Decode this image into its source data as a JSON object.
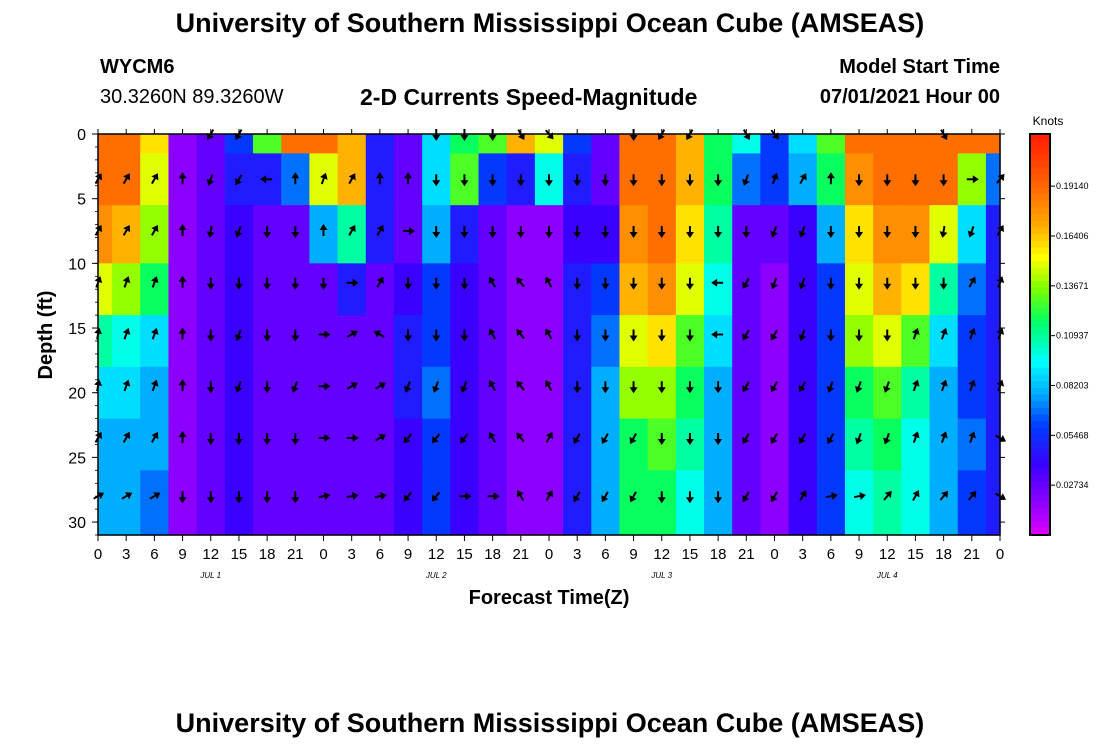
{
  "header": {
    "title": "University of Southern Mississippi Ocean Cube (AMSEAS)",
    "station": "WYCM6",
    "coordinates": "30.3260N  89.3260W",
    "subtitle": "2-D Currents Speed-Magnitude",
    "start_label": "Model Start Time",
    "start_value": "07/01/2021 Hour 00"
  },
  "footer": {
    "title": "University of Southern Mississippi Ocean Cube (AMSEAS)"
  },
  "chart_data": {
    "type": "heatmap",
    "title": "2-D Currents Speed-Magnitude",
    "xlabel": "Forecast Time(Z)",
    "ylabel": "Depth (ft)",
    "x_range_hours": [
      0,
      96
    ],
    "ylim": [
      0,
      31
    ],
    "x_tick_labels": [
      "0",
      "3",
      "6",
      "9",
      "12",
      "15",
      "18",
      "21",
      "0",
      "3",
      "6",
      "9",
      "12",
      "15",
      "18",
      "21",
      "0",
      "3",
      "6",
      "9",
      "12",
      "15",
      "18",
      "21",
      "0",
      "3",
      "6",
      "9",
      "12",
      "15",
      "18",
      "21",
      "0"
    ],
    "y_tick_labels": [
      "0",
      "5",
      "10",
      "15",
      "20",
      "25",
      "30"
    ],
    "day_labels": [
      {
        "label": "JUL 1",
        "hour": 12
      },
      {
        "label": "JUL 2",
        "hour": 36
      },
      {
        "label": "JUL 3",
        "hour": 60
      },
      {
        "label": "JUL 4",
        "hour": 84
      }
    ],
    "colorbar": {
      "title": "Knots",
      "range": [
        0,
        0.22
      ],
      "tick_labels": [
        "0.02734",
        "0.05468",
        "0.08203",
        "0.10937",
        "0.13671",
        "0.16406",
        "0.19140"
      ],
      "tick_values": [
        0.02734,
        0.05468,
        0.08203,
        0.10937,
        0.13671,
        0.16406,
        0.1914
      ]
    },
    "hours": [
      0,
      3,
      6,
      9,
      12,
      15,
      18,
      21,
      24,
      27,
      30,
      33,
      36,
      39,
      42,
      45,
      48,
      51,
      54,
      57,
      60,
      63,
      66,
      69,
      72,
      75,
      78,
      81,
      84,
      87,
      90,
      93,
      96
    ],
    "depths": [
      0,
      3,
      8,
      12,
      16,
      20,
      24,
      28,
      31
    ],
    "speed_knots": [
      [
        0.19,
        0.19,
        0.16,
        0.02,
        0.03,
        0.06,
        0.13,
        0.19,
        0.19,
        0.17,
        0.05,
        0.03,
        0.09,
        0.12,
        0.13,
        0.17,
        0.15,
        0.06,
        0.03,
        0.19,
        0.19,
        0.17,
        0.12,
        0.1,
        0.06,
        0.09,
        0.13,
        0.19,
        0.19,
        0.19,
        0.19,
        0.19,
        0.19
      ],
      [
        0.19,
        0.19,
        0.15,
        0.02,
        0.03,
        0.05,
        0.05,
        0.07,
        0.15,
        0.17,
        0.05,
        0.03,
        0.09,
        0.13,
        0.06,
        0.05,
        0.1,
        0.05,
        0.03,
        0.19,
        0.19,
        0.17,
        0.12,
        0.07,
        0.06,
        0.08,
        0.12,
        0.18,
        0.19,
        0.19,
        0.19,
        0.14,
        0.07
      ],
      [
        0.18,
        0.17,
        0.14,
        0.02,
        0.03,
        0.04,
        0.03,
        0.03,
        0.08,
        0.11,
        0.05,
        0.03,
        0.08,
        0.05,
        0.03,
        0.02,
        0.02,
        0.04,
        0.04,
        0.18,
        0.19,
        0.16,
        0.11,
        0.03,
        0.03,
        0.04,
        0.08,
        0.16,
        0.18,
        0.18,
        0.15,
        0.09,
        0.05
      ],
      [
        0.15,
        0.14,
        0.12,
        0.02,
        0.03,
        0.04,
        0.03,
        0.03,
        0.03,
        0.05,
        0.03,
        0.04,
        0.06,
        0.04,
        0.03,
        0.02,
        0.02,
        0.05,
        0.06,
        0.17,
        0.18,
        0.15,
        0.1,
        0.03,
        0.02,
        0.04,
        0.06,
        0.15,
        0.17,
        0.16,
        0.11,
        0.07,
        0.05
      ],
      [
        0.11,
        0.1,
        0.09,
        0.02,
        0.03,
        0.04,
        0.03,
        0.03,
        0.03,
        0.03,
        0.03,
        0.05,
        0.06,
        0.04,
        0.03,
        0.02,
        0.02,
        0.05,
        0.07,
        0.15,
        0.16,
        0.13,
        0.09,
        0.03,
        0.02,
        0.04,
        0.06,
        0.14,
        0.15,
        0.13,
        0.09,
        0.06,
        0.05
      ],
      [
        0.09,
        0.09,
        0.08,
        0.02,
        0.03,
        0.04,
        0.03,
        0.03,
        0.03,
        0.03,
        0.03,
        0.05,
        0.07,
        0.04,
        0.03,
        0.02,
        0.02,
        0.05,
        0.08,
        0.14,
        0.14,
        0.12,
        0.08,
        0.03,
        0.02,
        0.04,
        0.06,
        0.12,
        0.13,
        0.11,
        0.08,
        0.06,
        0.05
      ],
      [
        0.08,
        0.08,
        0.08,
        0.02,
        0.03,
        0.04,
        0.03,
        0.03,
        0.03,
        0.03,
        0.03,
        0.04,
        0.06,
        0.04,
        0.03,
        0.02,
        0.02,
        0.05,
        0.08,
        0.12,
        0.13,
        0.11,
        0.08,
        0.03,
        0.02,
        0.04,
        0.06,
        0.11,
        0.12,
        0.1,
        0.08,
        0.07,
        0.05
      ],
      [
        0.08,
        0.08,
        0.07,
        0.02,
        0.03,
        0.04,
        0.03,
        0.03,
        0.03,
        0.03,
        0.03,
        0.04,
        0.06,
        0.04,
        0.03,
        0.02,
        0.02,
        0.05,
        0.08,
        0.12,
        0.12,
        0.1,
        0.08,
        0.03,
        0.02,
        0.04,
        0.06,
        0.1,
        0.11,
        0.1,
        0.08,
        0.06,
        0.05
      ],
      [
        0.08,
        0.08,
        0.07,
        0.02,
        0.03,
        0.04,
        0.03,
        0.03,
        0.03,
        0.03,
        0.03,
        0.04,
        0.06,
        0.04,
        0.03,
        0.02,
        0.02,
        0.05,
        0.08,
        0.12,
        0.12,
        0.1,
        0.08,
        0.03,
        0.02,
        0.04,
        0.06,
        0.1,
        0.11,
        0.1,
        0.08,
        0.06,
        0.05
      ]
    ],
    "current_vectors": {
      "depths": [
        0,
        3.5,
        7.5,
        11.5,
        15.5,
        19.5,
        23.5,
        28
      ],
      "hours": [
        0,
        3,
        6,
        9,
        12,
        15,
        18,
        21,
        24,
        27,
        30,
        33,
        36,
        39,
        42,
        45,
        48,
        51,
        54,
        57,
        60,
        63,
        66,
        69,
        72,
        75,
        78,
        81,
        84,
        87,
        90,
        93,
        96
      ],
      "direction_deg": [
        [
          null,
          null,
          null,
          null,
          210,
          210,
          null,
          null,
          null,
          null,
          null,
          null,
          180,
          180,
          180,
          150,
          140,
          null,
          null,
          180,
          210,
          210,
          null,
          150,
          140,
          null,
          null,
          null,
          null,
          null,
          150,
          null,
          null
        ],
        [
          30,
          30,
          30,
          0,
          200,
          210,
          270,
          0,
          20,
          30,
          0,
          0,
          180,
          180,
          180,
          180,
          180,
          180,
          180,
          180,
          180,
          180,
          180,
          200,
          20,
          30,
          0,
          180,
          180,
          180,
          180,
          90,
          40
        ],
        [
          30,
          30,
          30,
          0,
          190,
          200,
          180,
          180,
          0,
          30,
          30,
          90,
          180,
          180,
          180,
          180,
          180,
          180,
          180,
          180,
          180,
          180,
          180,
          180,
          200,
          200,
          180,
          180,
          180,
          180,
          190,
          200,
          30
        ],
        [
          20,
          20,
          20,
          0,
          180,
          180,
          180,
          180,
          180,
          90,
          30,
          180,
          180,
          180,
          330,
          320,
          330,
          180,
          180,
          180,
          180,
          180,
          270,
          210,
          200,
          200,
          180,
          180,
          180,
          180,
          180,
          30,
          20
        ],
        [
          10,
          20,
          20,
          0,
          180,
          200,
          180,
          180,
          90,
          60,
          300,
          180,
          180,
          180,
          330,
          320,
          330,
          180,
          180,
          180,
          180,
          180,
          270,
          210,
          210,
          200,
          180,
          180,
          180,
          20,
          20,
          20,
          20
        ],
        [
          10,
          20,
          20,
          0,
          180,
          200,
          180,
          200,
          90,
          60,
          60,
          200,
          200,
          200,
          330,
          320,
          330,
          180,
          180,
          180,
          180,
          180,
          180,
          210,
          210,
          210,
          200,
          200,
          200,
          20,
          20,
          20,
          20
        ],
        [
          30,
          30,
          30,
          0,
          180,
          180,
          180,
          180,
          90,
          90,
          60,
          220,
          220,
          220,
          330,
          320,
          30,
          210,
          210,
          210,
          180,
          180,
          180,
          210,
          210,
          210,
          210,
          200,
          200,
          20,
          20,
          20,
          120
        ],
        [
          60,
          60,
          60,
          180,
          180,
          180,
          180,
          180,
          80,
          80,
          80,
          220,
          220,
          90,
          90,
          330,
          30,
          210,
          210,
          210,
          180,
          180,
          180,
          210,
          210,
          30,
          80,
          80,
          40,
          30,
          40,
          40,
          120
        ]
      ]
    }
  }
}
